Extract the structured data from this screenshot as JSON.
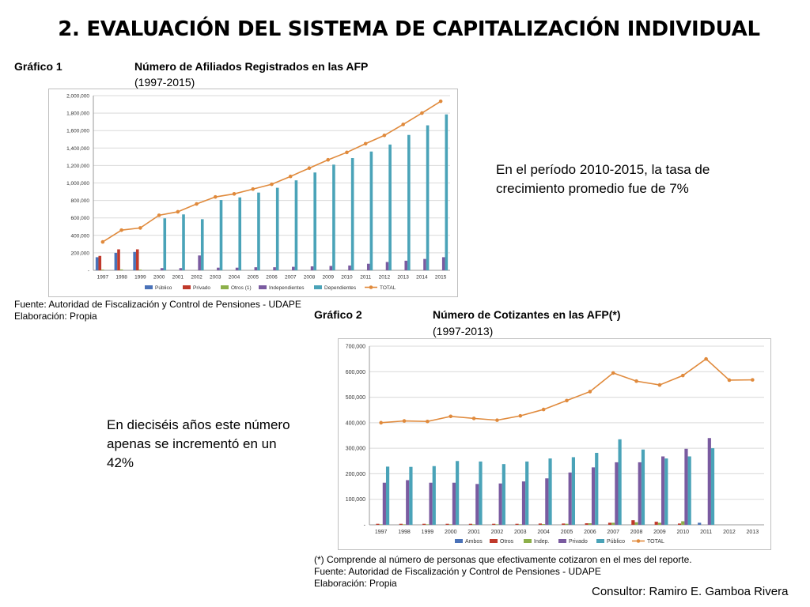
{
  "title": "2. EVALUACIÓN DEL SISTEMA DE CAPITALIZACIÓN INDIVIDUAL",
  "chart1": {
    "label": "Gráfico 1",
    "heading": "Número de Afiliados Registrados en las AFP",
    "period": "(1997-2015)",
    "source": "Fuente: Autoridad de Fiscalización y Control de Pensiones - UDAPE",
    "elaboration": "Elaboración: Propia",
    "comment": "En el período 2010-2015, la tasa de crecimiento promedio fue de 7%"
  },
  "chart2": {
    "label": "Gráfico 2",
    "heading": "Número de Cotizantes en las AFP(*)",
    "period": "(1997-2013)",
    "footnote": "(*) Comprende al número de personas que efectivamente cotizaron en el mes del reporte.",
    "source": "Fuente: Autoridad de Fiscalización y Control de Pensiones - UDAPE",
    "elaboration": "Elaboración: Propia",
    "comment": "En dieciséis años este número apenas se incrementó en un 42%"
  },
  "consultant": "Consultor: Ramiro E. Gamboa Rivera",
  "chart_data": [
    {
      "type": "bar",
      "categories": [
        "1997",
        "1998",
        "1999",
        "2000",
        "2001",
        "2002",
        "2003",
        "2004",
        "2005",
        "2006",
        "2007",
        "2008",
        "2009",
        "2010",
        "2011",
        "2012",
        "2013",
        "2014",
        "2015"
      ],
      "ylim": [
        0,
        2000000
      ],
      "yticks": [
        0,
        200000,
        400000,
        600000,
        800000,
        1000000,
        1200000,
        1400000,
        1600000,
        1800000,
        2000000
      ],
      "ytick_labels": [
        "-",
        "200,000",
        "400,000",
        "600,000",
        "800,000",
        "1,000,000",
        "1,200,000",
        "1,400,000",
        "1,600,000",
        "1,800,000",
        "2,000,000"
      ],
      "legend_position": "bottom",
      "series": [
        {
          "name": "Público",
          "kind": "bar",
          "color": "#4a72b8",
          "values": [
            150000,
            200000,
            210000,
            0,
            0,
            0,
            0,
            0,
            0,
            0,
            0,
            0,
            0,
            0,
            0,
            0,
            0,
            0,
            0
          ]
        },
        {
          "name": "Privado",
          "kind": "bar",
          "color": "#c0392b",
          "values": [
            165000,
            240000,
            240000,
            0,
            0,
            0,
            0,
            0,
            0,
            0,
            0,
            0,
            0,
            0,
            0,
            0,
            0,
            0,
            0
          ]
        },
        {
          "name": "Otros (1)",
          "kind": "bar",
          "color": "#8db04a",
          "values": [
            8000,
            10000,
            8000,
            0,
            0,
            0,
            0,
            0,
            0,
            0,
            0,
            0,
            0,
            0,
            0,
            0,
            0,
            0,
            0
          ]
        },
        {
          "name": "Independientes",
          "kind": "bar",
          "color": "#7a5ba0",
          "values": [
            0,
            0,
            0,
            25000,
            25000,
            170000,
            30000,
            30000,
            35000,
            35000,
            40000,
            45000,
            50000,
            55000,
            75000,
            95000,
            110000,
            130000,
            150000
          ]
        },
        {
          "name": "Dependientes",
          "kind": "bar",
          "color": "#4aa3b8",
          "values": [
            0,
            0,
            0,
            595000,
            640000,
            585000,
            805000,
            835000,
            890000,
            945000,
            1030000,
            1120000,
            1210000,
            1285000,
            1360000,
            1440000,
            1550000,
            1660000,
            1785000
          ]
        },
        {
          "name": "TOTAL",
          "kind": "line",
          "color": "#e08a3c",
          "values": [
            325000,
            460000,
            485000,
            630000,
            670000,
            760000,
            840000,
            875000,
            930000,
            985000,
            1075000,
            1170000,
            1265000,
            1350000,
            1450000,
            1545000,
            1670000,
            1800000,
            1935000
          ]
        }
      ]
    },
    {
      "type": "bar",
      "categories": [
        "1997",
        "1998",
        "1999",
        "2000",
        "2001",
        "2002",
        "2003",
        "2004",
        "2005",
        "2006",
        "2007",
        "2008",
        "2009",
        "2010",
        "2011",
        "2012",
        "2013"
      ],
      "ylim": [
        0,
        700000
      ],
      "yticks": [
        0,
        100000,
        200000,
        300000,
        400000,
        500000,
        600000,
        700000
      ],
      "ytick_labels": [
        "-",
        "100,000",
        "200,000",
        "300,000",
        "400,000",
        "500,000",
        "600,000",
        "700,000"
      ],
      "legend_position": "bottom",
      "series": [
        {
          "name": "Ambos",
          "kind": "bar",
          "color": "#4a72b8",
          "values": [
            0,
            0,
            0,
            0,
            0,
            0,
            0,
            0,
            0,
            0,
            0,
            0,
            0,
            0,
            8000,
            0,
            0
          ]
        },
        {
          "name": "Otros",
          "kind": "bar",
          "color": "#c0392b",
          "values": [
            4000,
            4000,
            4000,
            4000,
            4000,
            4000,
            4000,
            5000,
            5000,
            6000,
            8000,
            18000,
            12000,
            5000,
            0,
            0,
            0
          ]
        },
        {
          "name": "Indep.",
          "kind": "bar",
          "color": "#8db04a",
          "values": [
            2000,
            2000,
            2000,
            2000,
            2000,
            2000,
            2000,
            3000,
            4000,
            6000,
            8000,
            10000,
            8000,
            14000,
            0,
            0,
            0
          ]
        },
        {
          "name": "Privado",
          "kind": "bar",
          "color": "#7a5ba0",
          "values": [
            165000,
            175000,
            165000,
            165000,
            160000,
            162000,
            170000,
            182000,
            205000,
            225000,
            245000,
            245000,
            268000,
            298000,
            340000,
            0,
            0
          ]
        },
        {
          "name": "Público",
          "kind": "bar",
          "color": "#4aa3b8",
          "values": [
            228000,
            227000,
            230000,
            250000,
            248000,
            238000,
            248000,
            260000,
            265000,
            282000,
            335000,
            295000,
            260000,
            268000,
            300000,
            0,
            0
          ]
        },
        {
          "name": "TOTAL",
          "kind": "line",
          "color": "#e08a3c",
          "values": [
            400000,
            407000,
            405000,
            425000,
            417000,
            410000,
            427000,
            452000,
            487000,
            522000,
            595000,
            563000,
            548000,
            585000,
            650000,
            567000,
            568000
          ]
        }
      ]
    }
  ]
}
